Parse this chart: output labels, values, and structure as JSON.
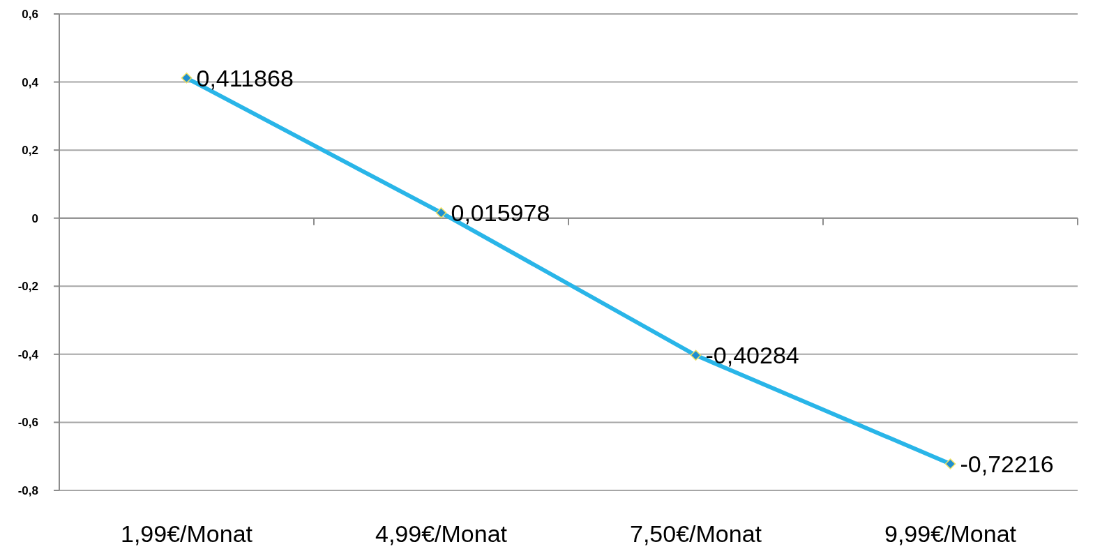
{
  "chart_data": {
    "type": "line",
    "categories": [
      "1,99€/Monat",
      "4,99€/Monat",
      "7,50€/Monat",
      "9,99€/Monat"
    ],
    "series": [
      {
        "color": "#29b5e8",
        "values": [
          0.411868,
          0.015978,
          -0.40284,
          -0.72216
        ],
        "value_labels": [
          "0,411868",
          "0,015978",
          "-0,40284",
          "-0,72216"
        ]
      }
    ],
    "ylim": [
      -0.8,
      0.6
    ],
    "yticks": [
      {
        "value": -0.8,
        "label": "-0,8"
      },
      {
        "value": -0.6,
        "label": "-0,6"
      },
      {
        "value": -0.4,
        "label": "-0,4"
      },
      {
        "value": -0.2,
        "label": "-0,2"
      },
      {
        "value": 0,
        "label": "0"
      },
      {
        "value": 0.2,
        "label": "0,2"
      },
      {
        "value": 0.4,
        "label": "0,4"
      },
      {
        "value": 0.6,
        "label": "0,6"
      }
    ],
    "grid": "y",
    "marker": "diamond",
    "line_style": "solid"
  }
}
